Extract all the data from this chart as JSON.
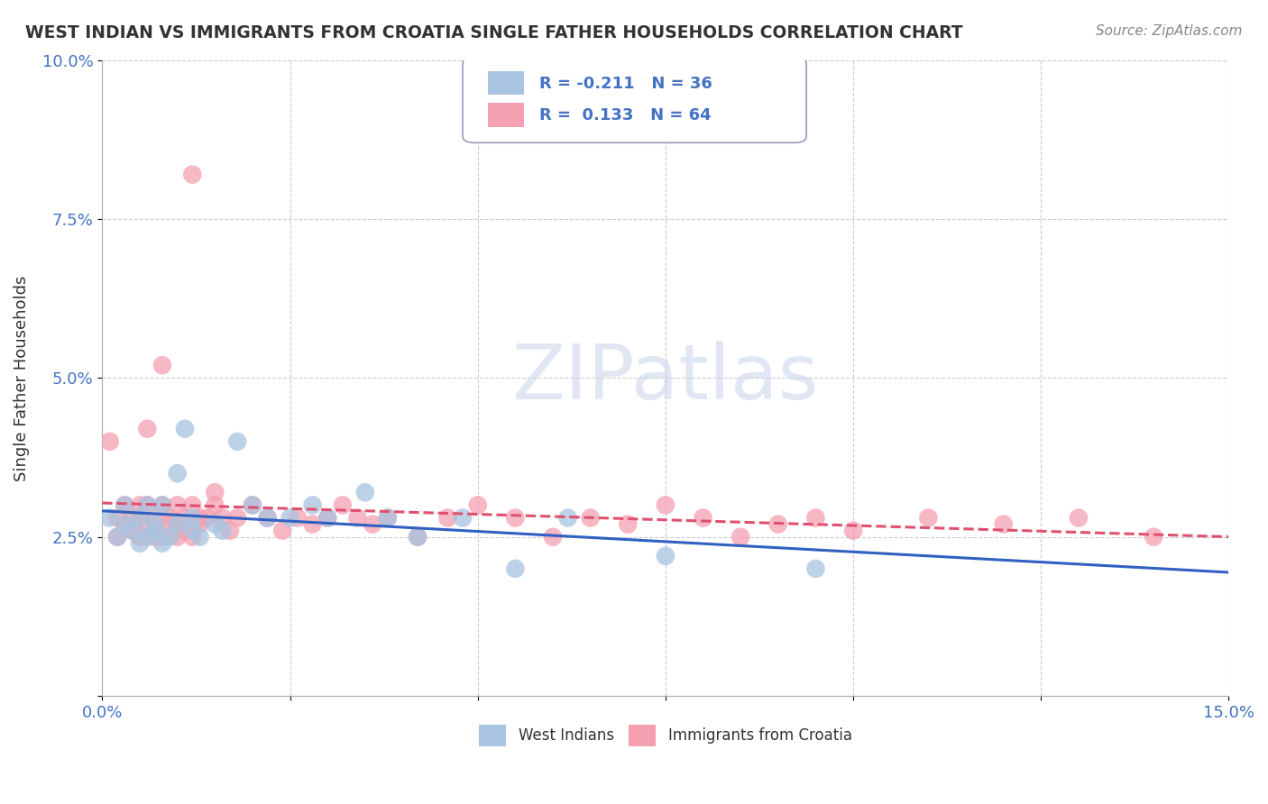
{
  "title": "WEST INDIAN VS IMMIGRANTS FROM CROATIA SINGLE FATHER HOUSEHOLDS CORRELATION CHART",
  "source": "Source: ZipAtlas.com",
  "ylabel": "Single Father Households",
  "xlim": [
    0.0,
    0.15
  ],
  "ylim": [
    0.0,
    0.1
  ],
  "west_indian_R": "-0.211",
  "west_indian_N": "36",
  "croatia_R": "0.133",
  "croatia_N": "64",
  "west_indian_color": "#a8c4e0",
  "croatia_color": "#f4a0b0",
  "west_indian_line_color": "#3060c0",
  "croatia_line_color": "#e05070",
  "background_color": "#ffffff",
  "west_indian_x": [
    0.001,
    0.002,
    0.003,
    0.003,
    0.004,
    0.005,
    0.005,
    0.006,
    0.006,
    0.007,
    0.007,
    0.008,
    0.008,
    0.009,
    0.01,
    0.01,
    0.011,
    0.012,
    0.012,
    0.013,
    0.015,
    0.016,
    0.018,
    0.02,
    0.022,
    0.025,
    0.028,
    0.03,
    0.035,
    0.038,
    0.042,
    0.048,
    0.055,
    0.062,
    0.075,
    0.095
  ],
  "west_indian_y": [
    0.028,
    0.025,
    0.03,
    0.027,
    0.026,
    0.024,
    0.028,
    0.025,
    0.03,
    0.026,
    0.027,
    0.024,
    0.03,
    0.025,
    0.027,
    0.035,
    0.042,
    0.028,
    0.026,
    0.025,
    0.027,
    0.026,
    0.04,
    0.03,
    0.028,
    0.028,
    0.03,
    0.028,
    0.032,
    0.028,
    0.025,
    0.028,
    0.02,
    0.028,
    0.022,
    0.02
  ],
  "croatia_x": [
    0.001,
    0.002,
    0.002,
    0.003,
    0.003,
    0.004,
    0.004,
    0.005,
    0.005,
    0.005,
    0.006,
    0.006,
    0.006,
    0.007,
    0.007,
    0.007,
    0.008,
    0.008,
    0.009,
    0.009,
    0.01,
    0.01,
    0.01,
    0.011,
    0.011,
    0.012,
    0.012,
    0.013,
    0.013,
    0.014,
    0.015,
    0.015,
    0.016,
    0.017,
    0.018,
    0.02,
    0.022,
    0.024,
    0.026,
    0.028,
    0.03,
    0.032,
    0.034,
    0.036,
    0.038,
    0.042,
    0.046,
    0.05,
    0.055,
    0.06,
    0.065,
    0.07,
    0.075,
    0.08,
    0.085,
    0.09,
    0.095,
    0.1,
    0.11,
    0.12,
    0.13,
    0.14,
    0.012,
    0.008
  ],
  "croatia_y": [
    0.04,
    0.028,
    0.025,
    0.03,
    0.027,
    0.028,
    0.026,
    0.03,
    0.028,
    0.025,
    0.042,
    0.03,
    0.027,
    0.025,
    0.028,
    0.026,
    0.03,
    0.025,
    0.027,
    0.028,
    0.03,
    0.025,
    0.027,
    0.026,
    0.028,
    0.03,
    0.025,
    0.028,
    0.027,
    0.028,
    0.032,
    0.03,
    0.028,
    0.026,
    0.028,
    0.03,
    0.028,
    0.026,
    0.028,
    0.027,
    0.028,
    0.03,
    0.028,
    0.027,
    0.028,
    0.025,
    0.028,
    0.03,
    0.028,
    0.025,
    0.028,
    0.027,
    0.03,
    0.028,
    0.025,
    0.027,
    0.028,
    0.026,
    0.028,
    0.027,
    0.028,
    0.025,
    0.082,
    0.052
  ]
}
